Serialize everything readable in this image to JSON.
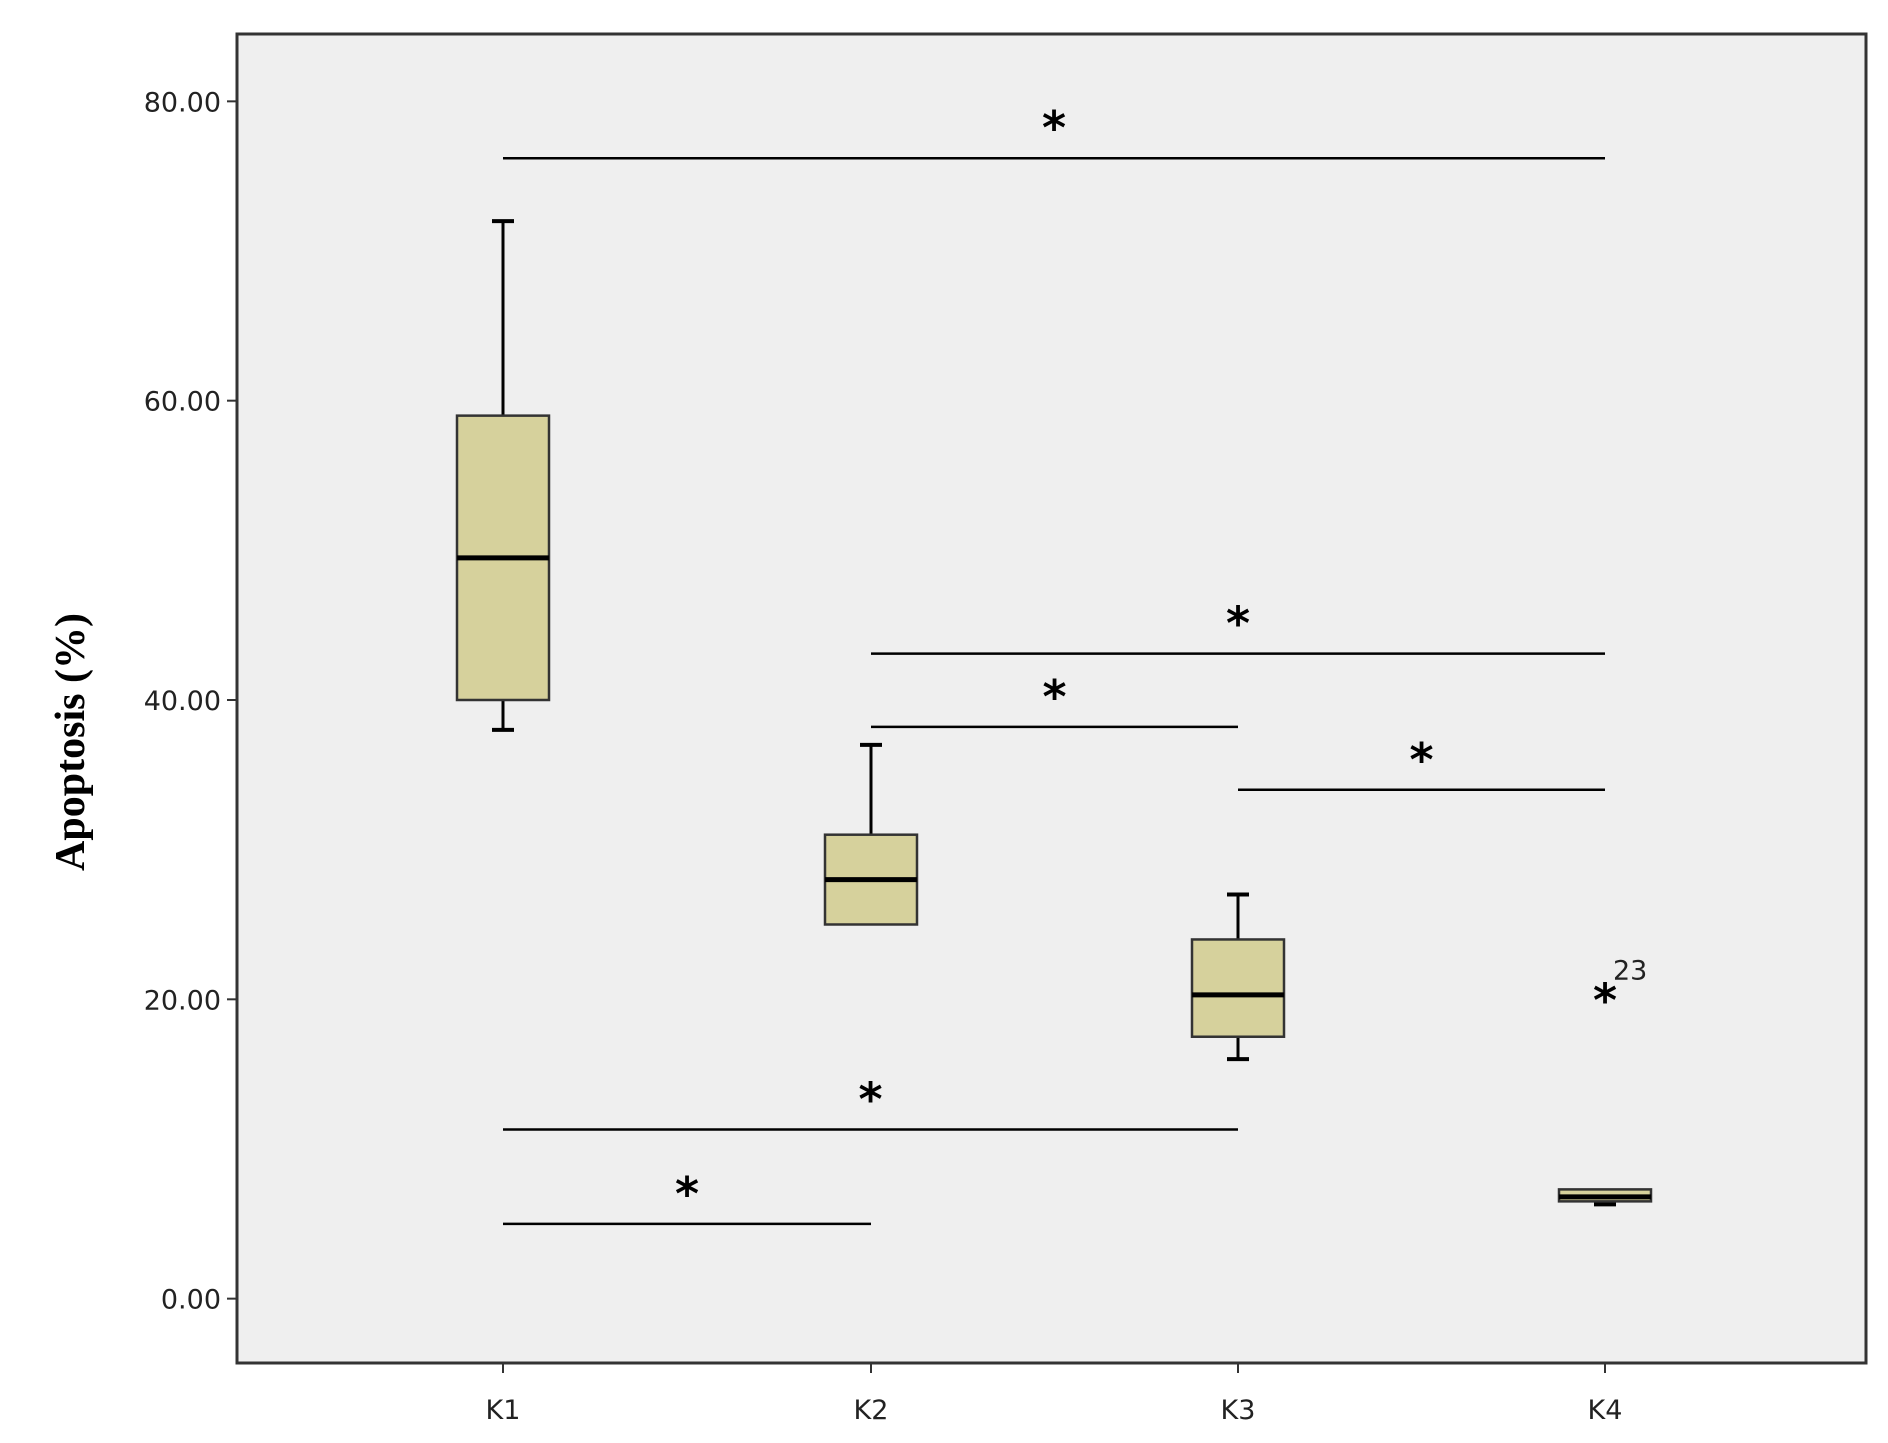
{
  "chart_data": {
    "type": "box",
    "ylabel": "Apoptosis (%)",
    "ylim": [
      -4.3,
      84.5
    ],
    "yticks": [
      {
        "value": 0,
        "label": "0.00"
      },
      {
        "value": 20,
        "label": "20.00"
      },
      {
        "value": 40,
        "label": "40.00"
      },
      {
        "value": 60,
        "label": "60.00"
      },
      {
        "value": 80,
        "label": "80.00"
      }
    ],
    "categories": [
      "K1",
      "K2",
      "K3",
      "K4"
    ],
    "boxes": [
      {
        "category": "K1",
        "whisker_low": 38,
        "q1": 40,
        "median": 49.5,
        "q3": 59,
        "whisker_high": 72
      },
      {
        "category": "K2",
        "whisker_low": 25,
        "q1": 25,
        "median": 28,
        "q3": 31,
        "whisker_high": 37
      },
      {
        "category": "K3",
        "whisker_low": 16,
        "q1": 17.5,
        "median": 20.3,
        "q3": 24,
        "whisker_high": 27
      },
      {
        "category": "K4",
        "whisker_low": 6.3,
        "q1": 6.5,
        "median": 6.8,
        "q3": 7.3,
        "whisker_high": 7.3
      }
    ],
    "outliers": [
      {
        "category": "K4",
        "value": 20,
        "label": "23",
        "marker": "*"
      }
    ],
    "significance": [
      {
        "from": "K1",
        "to": "K4",
        "y": 76.2,
        "label": "*"
      },
      {
        "from": "K2",
        "to": "K4",
        "y": 43.1,
        "label": "*"
      },
      {
        "from": "K2",
        "to": "K3",
        "y": 38.2,
        "label": "*"
      },
      {
        "from": "K3",
        "to": "K4",
        "y": 34.0,
        "label": "*"
      },
      {
        "from": "K1",
        "to": "K3",
        "y": 11.3,
        "label": "*"
      },
      {
        "from": "K1",
        "to": "K2",
        "y": 5.0,
        "label": "*"
      }
    ],
    "grid": false,
    "colors": {
      "box_fill": "#D6D19C",
      "plot_background": "#EFEFEF",
      "line": "#000000"
    }
  }
}
